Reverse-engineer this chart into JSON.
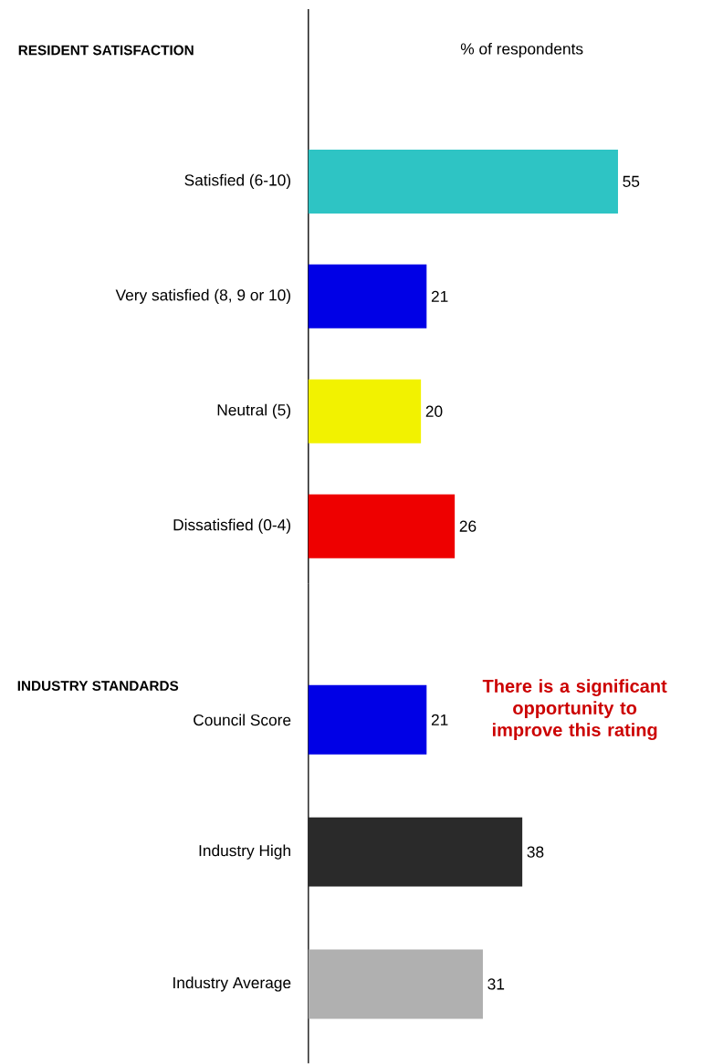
{
  "chart_data": [
    {
      "type": "bar",
      "orientation": "horizontal",
      "title": "RESIDENT SATISFACTION",
      "xlabel": "% of respondents",
      "categories": [
        "Satisfied (6-10)",
        "Very satisfied (8, 9 or 10)",
        "Neutral (5)",
        "Dissatisfied (0-4)"
      ],
      "values": [
        55,
        21,
        20,
        26
      ],
      "colors": [
        "#2ec4c4",
        "#0000e6",
        "#f2f200",
        "#ee0000"
      ],
      "data_labels": true
    },
    {
      "type": "bar",
      "orientation": "horizontal",
      "title": "INDUSTRY STANDARDS",
      "categories": [
        "Council Score",
        "Industry High",
        "Industry Average"
      ],
      "values": [
        21,
        38,
        31
      ],
      "colors": [
        "#0000e6",
        "#2a2a2a",
        "#b0b0b0"
      ],
      "data_labels": true,
      "annotations": [
        "There is a significant opportunity to improve this rating"
      ]
    }
  ]
}
